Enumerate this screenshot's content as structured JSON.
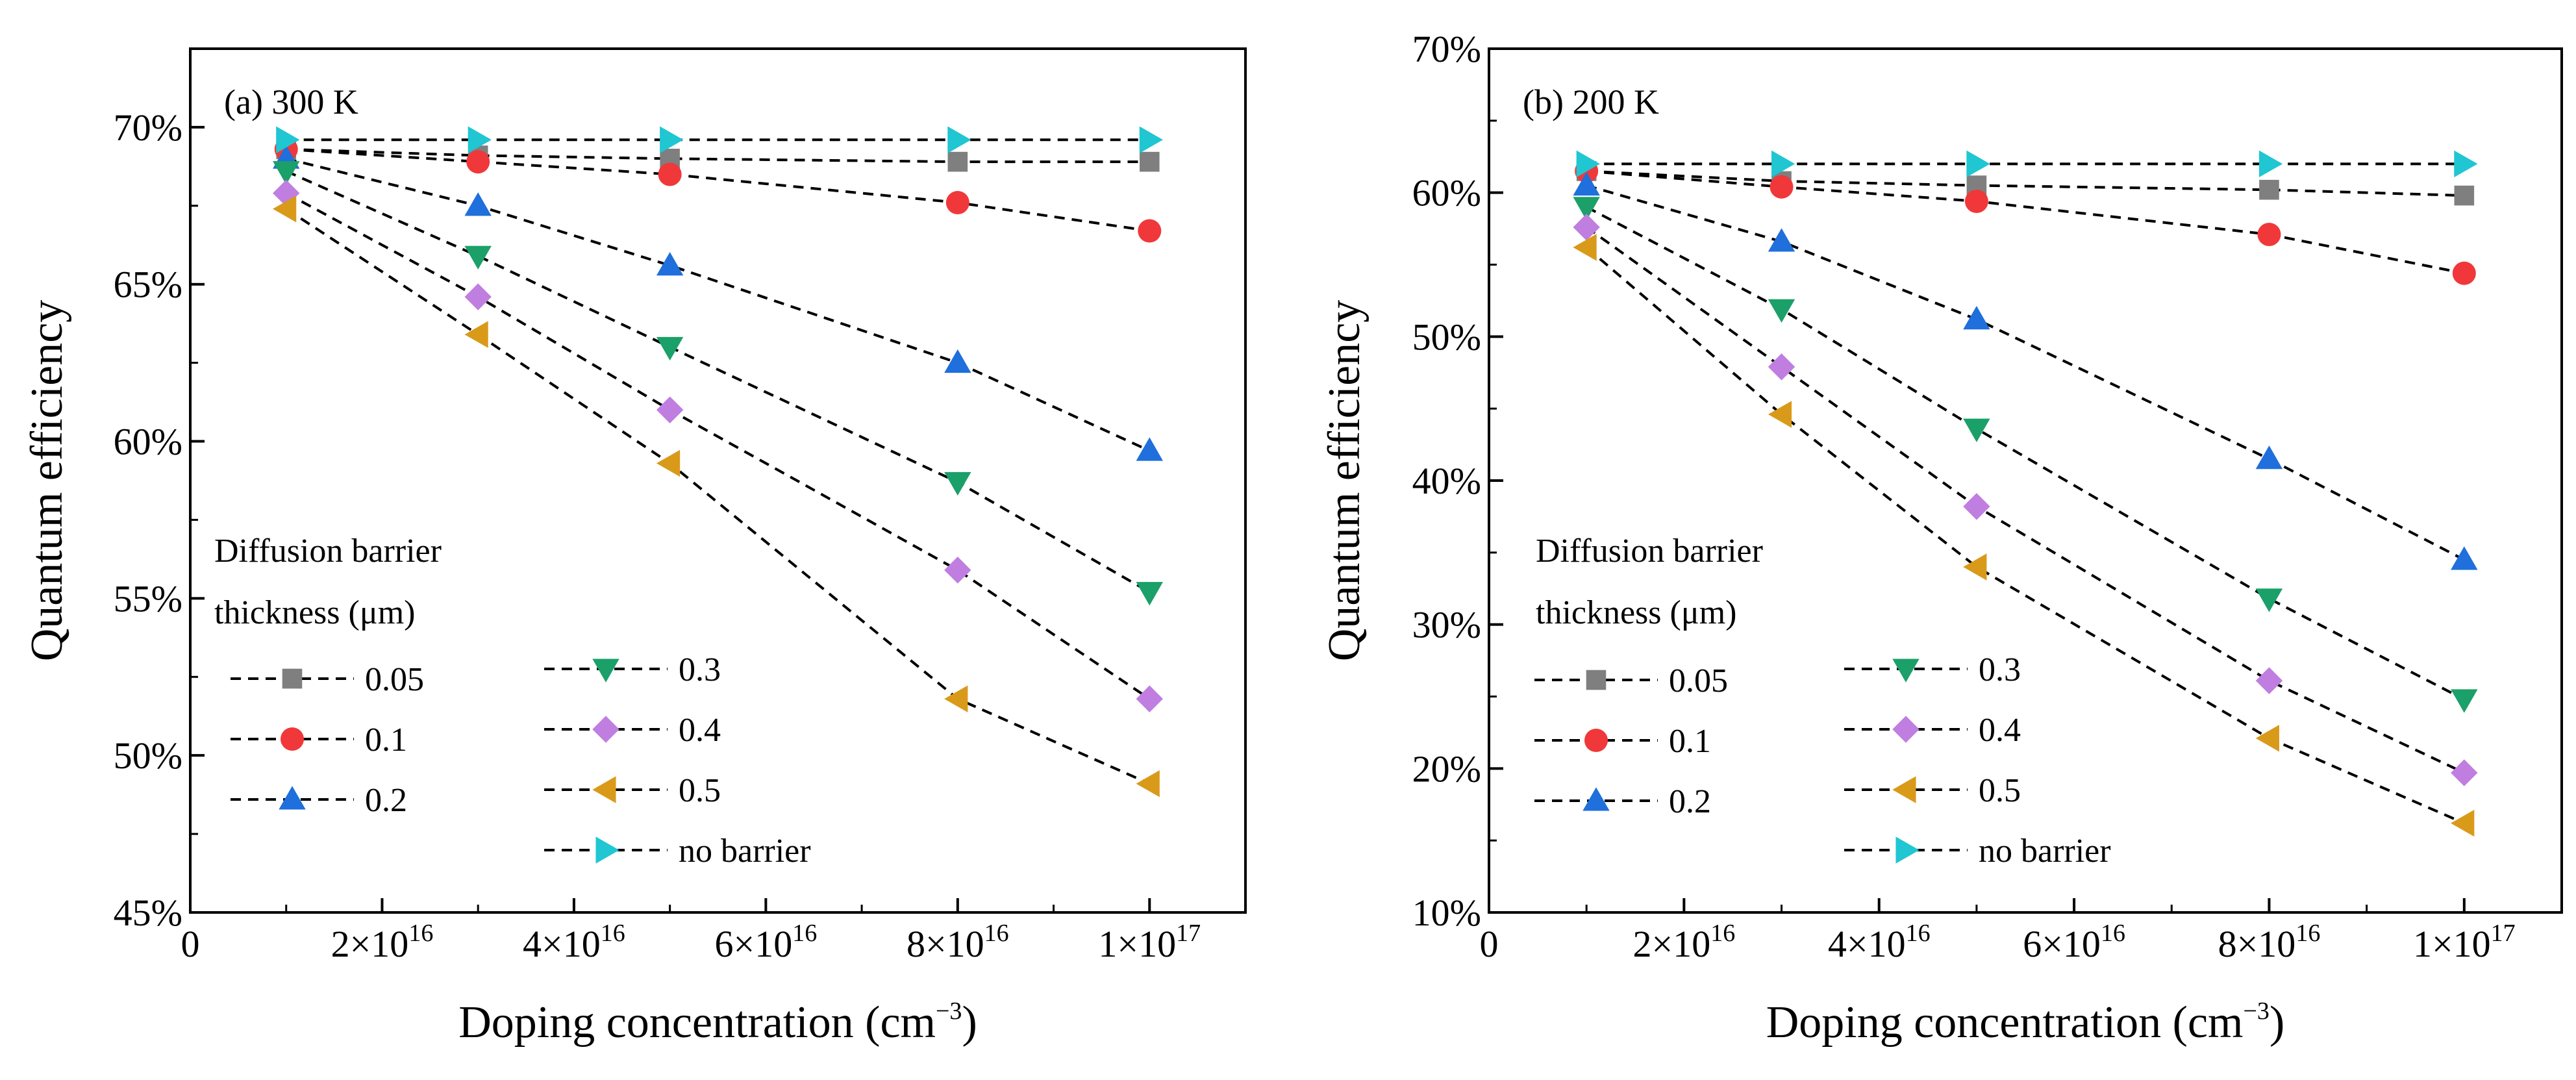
{
  "chart_data": [
    {
      "type": "line",
      "panel_label": "(a) 300 K",
      "xlabel": "Doping concentration (cm",
      "xlabel_sup": "−3",
      "xlabel_end": ")",
      "ylabel": "Quantum efficiency",
      "xlim": [
        0,
        1.1e+17
      ],
      "ylim": [
        45,
        72.5
      ],
      "xticks": [
        {
          "value": 0,
          "base": "0",
          "exp": ""
        },
        {
          "value": 2e+16,
          "base": "2×10",
          "exp": "16"
        },
        {
          "value": 4e+16,
          "base": "4×10",
          "exp": "16"
        },
        {
          "value": 6e+16,
          "base": "6×10",
          "exp": "16"
        },
        {
          "value": 8e+16,
          "base": "8×10",
          "exp": "16"
        },
        {
          "value": 1e+17,
          "base": "1×10",
          "exp": "17"
        }
      ],
      "yticks": [
        {
          "value": 45,
          "label": "45%"
        },
        {
          "value": 50,
          "label": "50%"
        },
        {
          "value": 55,
          "label": "55%"
        },
        {
          "value": 60,
          "label": "60%"
        },
        {
          "value": 65,
          "label": "65%"
        },
        {
          "value": 70,
          "label": "70%"
        }
      ],
      "x": [
        1e+16,
        3e+16,
        5e+16,
        8e+16,
        1e+17
      ],
      "legend_title_lines": [
        "Diffusion barrier",
        "thickness (μm)"
      ],
      "series": [
        {
          "name": "0.05",
          "marker": "square",
          "color": "#7f7f7f",
          "values": [
            69.3,
            69.1,
            69.0,
            68.9,
            68.9
          ]
        },
        {
          "name": "0.1",
          "marker": "circle",
          "color": "#f0383a",
          "values": [
            69.3,
            68.9,
            68.5,
            67.6,
            66.7
          ]
        },
        {
          "name": "0.2",
          "marker": "triangle-up",
          "color": "#1f6fdc",
          "values": [
            69.0,
            67.5,
            65.6,
            62.5,
            59.7
          ]
        },
        {
          "name": "0.3",
          "marker": "triangle-down",
          "color": "#1aa068",
          "values": [
            68.6,
            65.9,
            63.0,
            58.7,
            55.2
          ]
        },
        {
          "name": "0.4",
          "marker": "diamond",
          "color": "#c07ee0",
          "values": [
            67.9,
            64.6,
            61.0,
            55.9,
            51.8
          ]
        },
        {
          "name": "0.5",
          "marker": "triangle-left",
          "color": "#d99a1a",
          "values": [
            67.4,
            63.4,
            59.3,
            51.8,
            49.1
          ]
        },
        {
          "name": "no barrier",
          "marker": "triangle-right",
          "color": "#20c6d2",
          "values": [
            69.6,
            69.6,
            69.6,
            69.6,
            69.6
          ]
        }
      ]
    },
    {
      "type": "line",
      "panel_label": "(b) 200 K",
      "xlabel": "Doping concentration (cm",
      "xlabel_sup": "−3",
      "xlabel_end": ")",
      "ylabel": "Quantum efficiency",
      "xlim": [
        0,
        1.1e+17
      ],
      "ylim": [
        10,
        70
      ],
      "xticks": [
        {
          "value": 0,
          "base": "0",
          "exp": ""
        },
        {
          "value": 2e+16,
          "base": "2×10",
          "exp": "16"
        },
        {
          "value": 4e+16,
          "base": "4×10",
          "exp": "16"
        },
        {
          "value": 6e+16,
          "base": "6×10",
          "exp": "16"
        },
        {
          "value": 8e+16,
          "base": "8×10",
          "exp": "16"
        },
        {
          "value": 1e+17,
          "base": "1×10",
          "exp": "17"
        }
      ],
      "yticks": [
        {
          "value": 10,
          "label": "10%"
        },
        {
          "value": 20,
          "label": "20%"
        },
        {
          "value": 30,
          "label": "30%"
        },
        {
          "value": 40,
          "label": "40%"
        },
        {
          "value": 50,
          "label": "50%"
        },
        {
          "value": 60,
          "label": "60%"
        },
        {
          "value": 70,
          "label": "70%"
        }
      ],
      "x": [
        1e+16,
        3e+16,
        5e+16,
        8e+16,
        1e+17
      ],
      "legend_title_lines": [
        "Diffusion barrier",
        "thickness (μm)"
      ],
      "series": [
        {
          "name": "0.05",
          "marker": "square",
          "color": "#7f7f7f",
          "values": [
            61.5,
            60.8,
            60.5,
            60.2,
            59.8
          ]
        },
        {
          "name": "0.1",
          "marker": "circle",
          "color": "#f0383a",
          "values": [
            61.5,
            60.4,
            59.4,
            57.1,
            54.4
          ]
        },
        {
          "name": "0.2",
          "marker": "triangle-up",
          "color": "#1f6fdc",
          "values": [
            60.5,
            56.6,
            51.2,
            41.5,
            34.5
          ]
        },
        {
          "name": "0.3",
          "marker": "triangle-down",
          "color": "#1aa068",
          "values": [
            59.0,
            51.9,
            43.6,
            31.8,
            24.8
          ]
        },
        {
          "name": "0.4",
          "marker": "diamond",
          "color": "#c07ee0",
          "values": [
            57.6,
            47.9,
            38.2,
            26.1,
            19.7
          ]
        },
        {
          "name": "0.5",
          "marker": "triangle-left",
          "color": "#d99a1a",
          "values": [
            56.2,
            44.6,
            34.0,
            22.1,
            16.2
          ]
        },
        {
          "name": "no barrier",
          "marker": "triangle-right",
          "color": "#20c6d2",
          "values": [
            62.0,
            62.0,
            62.0,
            62.0,
            62.0
          ]
        }
      ]
    }
  ]
}
